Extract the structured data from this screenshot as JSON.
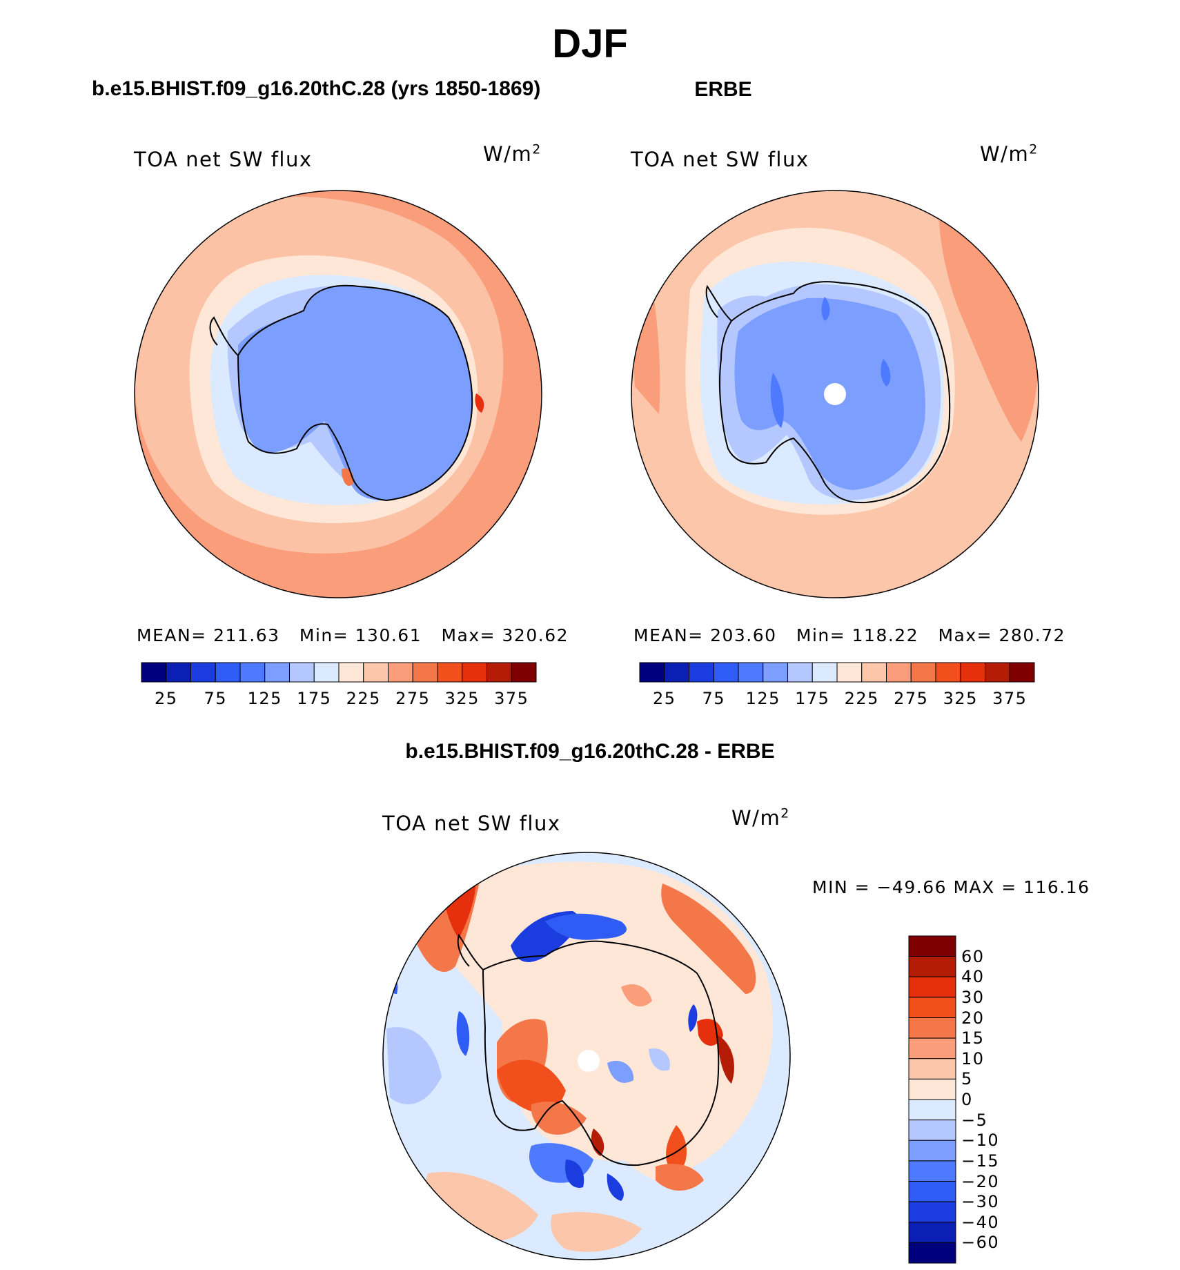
{
  "title": "DJF",
  "colors": {
    "blue_scale": [
      "#00007f",
      "#0c1fb4",
      "#1b3de0",
      "#2f5cf4",
      "#4d7aff",
      "#7c9fff",
      "#b4c8ff",
      "#dceaff"
    ],
    "red_scale": [
      "#ffe7d7",
      "#fbc6aa",
      "#f99d7a",
      "#f37749",
      "#f1501d",
      "#e52f0d",
      "#b51c06",
      "#7f0000"
    ],
    "diff_scale": [
      "#00007f",
      "#0c1fb4",
      "#1b3de0",
      "#2f5cf4",
      "#4d7aff",
      "#7c9fff",
      "#b4c8ff",
      "#dceaff",
      "#ffe7d7",
      "#fbc6aa",
      "#f99d7a",
      "#f37749",
      "#f1501d",
      "#e52f0d",
      "#b51c06",
      "#7f0000"
    ]
  },
  "chart_data": [
    {
      "type": "heatmap",
      "projection": "south polar stereographic",
      "title": "b.e15.BHIST.f09_g16.20thC.28 (yrs 1850-1869)",
      "variable": "TOA net SW flux",
      "units": "W/m",
      "units_exp": "2",
      "stats": "MEAN= 211.63   Min= 130.61   Max= 320.62",
      "mean": 211.63,
      "min": 130.61,
      "max": 320.62,
      "colorbar_ticks": [
        "25",
        "75",
        "125",
        "175",
        "225",
        "275",
        "325",
        "375"
      ],
      "contour_levels": [
        25,
        50,
        75,
        100,
        125,
        150,
        175,
        200,
        225,
        250,
        275,
        300,
        325,
        350,
        375
      ]
    },
    {
      "type": "heatmap",
      "projection": "south polar stereographic",
      "title": "ERBE",
      "variable": "TOA net SW flux",
      "units": "W/m",
      "units_exp": "2",
      "stats": "MEAN= 203.60   Min= 118.22   Max= 280.72",
      "mean": 203.6,
      "min": 118.22,
      "max": 280.72,
      "colorbar_ticks": [
        "25",
        "75",
        "125",
        "175",
        "225",
        "275",
        "325",
        "375"
      ],
      "contour_levels": [
        25,
        50,
        75,
        100,
        125,
        150,
        175,
        200,
        225,
        250,
        275,
        300,
        325,
        350,
        375
      ]
    },
    {
      "type": "heatmap",
      "projection": "south polar stereographic",
      "title": "b.e15.BHIST.f09_g16.20thC.28 - ERBE",
      "variable": "TOA net SW flux",
      "units": "W/m",
      "units_exp": "2",
      "stats": "MIN = −49.66 MAX = 116.16",
      "min": -49.66,
      "max": 116.16,
      "colorbar_ticks": [
        "60",
        "40",
        "30",
        "20",
        "15",
        "10",
        "5",
        "0",
        "−5",
        "−10",
        "−15",
        "−20",
        "−30",
        "−40",
        "−60"
      ],
      "contour_levels": [
        -60,
        -40,
        -30,
        -20,
        -15,
        -10,
        -5,
        0,
        5,
        10,
        15,
        20,
        30,
        40,
        60
      ]
    }
  ]
}
